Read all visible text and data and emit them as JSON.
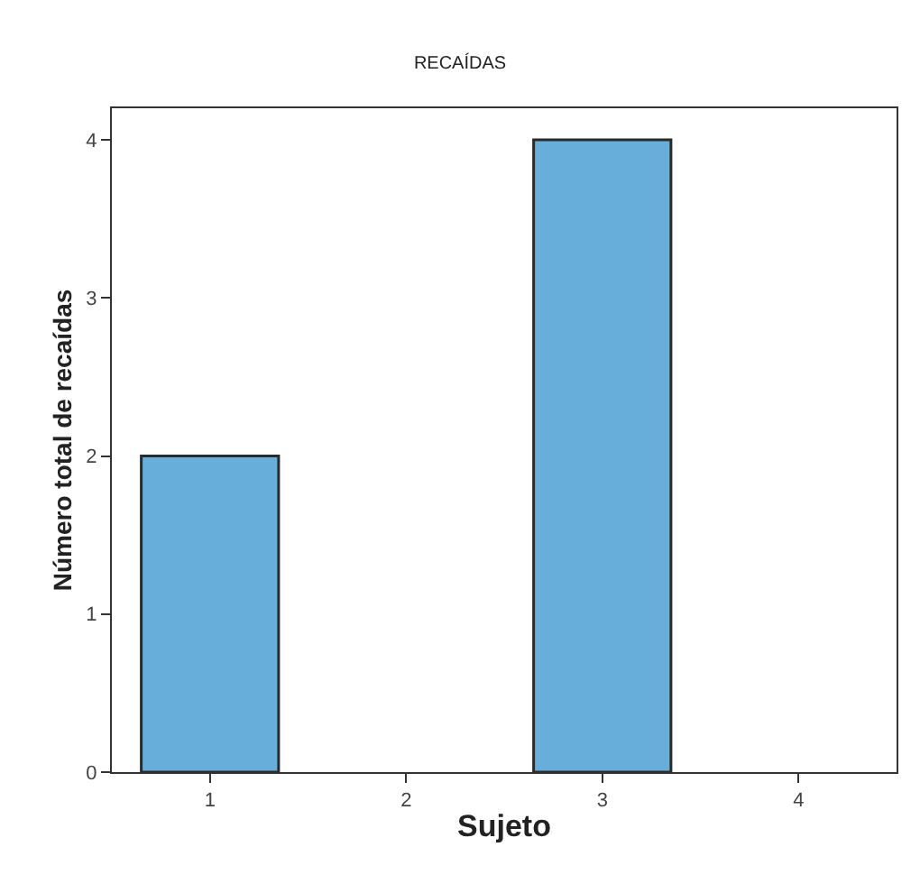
{
  "chart_data": {
    "type": "bar",
    "title": "RECAÍDAS",
    "xlabel": "Sujeto",
    "ylabel": "Número total de recaídas",
    "categories": [
      "1",
      "2",
      "3",
      "4"
    ],
    "values": [
      2,
      0,
      4,
      0
    ],
    "color": "#67aedb",
    "ylim": [
      0,
      4.2
    ],
    "yticks": [
      0,
      1,
      2,
      3,
      4
    ]
  }
}
